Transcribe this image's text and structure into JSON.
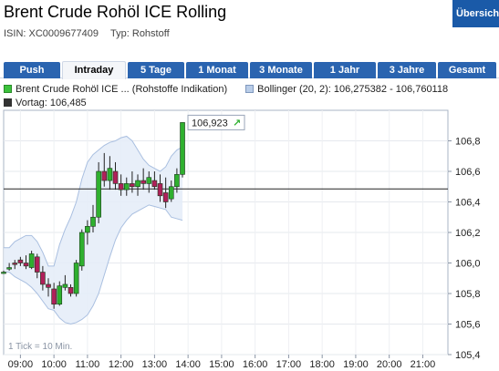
{
  "page": {
    "title": "Brent Crude Rohöl ICE Rolling",
    "overview_button": "Übersicht",
    "isin": "ISIN: XC0009677409",
    "type": "Typ: Rohstoff"
  },
  "tabs": [
    {
      "label": "Push"
    },
    {
      "label": "Intraday",
      "active": true
    },
    {
      "label": "5 Tage"
    },
    {
      "label": "1 Monat"
    },
    {
      "label": "3 Monate"
    },
    {
      "label": "1 Jahr"
    },
    {
      "label": "3 Jahre"
    },
    {
      "label": "Gesamt"
    }
  ],
  "legend": {
    "series": "Brent Crude Rohöl ICE ... (Rohstoffe Indikation)",
    "bollinger": "Bollinger (20, 2): 106,275382 - 106,760118",
    "prev_close": "Vortag: 106,485"
  },
  "colors": {
    "up": "#2fb02f",
    "down": "#b0205a",
    "band_fill": "#e4ecf8",
    "band_line": "#a9bfe0",
    "prev_line": "#222222",
    "tab_active_bg": "#f4f6f9",
    "tab_bg": "#2a64b0",
    "button_bg": "#1a5aa8"
  },
  "chart_data": {
    "type": "candlestick",
    "ylim": [
      105.4,
      107.0
    ],
    "y_ticks": [
      "106,8",
      "106,6",
      "106,4",
      "106,2",
      "106,0",
      "105,8",
      "105,6",
      "105,4"
    ],
    "x_ticks": [
      "09:00",
      "10:00",
      "11:00",
      "12:00",
      "13:00",
      "14:00",
      "15:00",
      "16:00",
      "17:00",
      "18:00",
      "19:00",
      "20:00",
      "21:00"
    ],
    "interval_note": "1 Tick = 10 Min.",
    "prev_close": 106.485,
    "last_value_label": "106,923",
    "last_value_arrow": "↗",
    "candles": [
      {
        "t": "08:30",
        "o": 105.94,
        "h": 105.95,
        "l": 105.93,
        "c": 105.94
      },
      {
        "t": "08:40",
        "o": 105.96,
        "h": 106.0,
        "l": 105.95,
        "c": 105.97
      },
      {
        "t": "08:50",
        "o": 106.0,
        "h": 106.02,
        "l": 105.96,
        "c": 105.99
      },
      {
        "t": "09:00",
        "o": 106.02,
        "h": 106.04,
        "l": 105.98,
        "c": 106.0
      },
      {
        "t": "09:10",
        "o": 106.0,
        "h": 106.05,
        "l": 105.96,
        "c": 105.98
      },
      {
        "t": "09:20",
        "o": 105.97,
        "h": 106.08,
        "l": 105.96,
        "c": 106.06
      },
      {
        "t": "09:30",
        "o": 106.04,
        "h": 106.06,
        "l": 105.9,
        "c": 105.94
      },
      {
        "t": "09:40",
        "o": 105.94,
        "h": 105.98,
        "l": 105.82,
        "c": 105.86
      },
      {
        "t": "09:50",
        "o": 105.86,
        "h": 105.9,
        "l": 105.78,
        "c": 105.84
      },
      {
        "t": "10:00",
        "o": 105.83,
        "h": 105.87,
        "l": 105.7,
        "c": 105.73
      },
      {
        "t": "10:10",
        "o": 105.73,
        "h": 105.88,
        "l": 105.72,
        "c": 105.85
      },
      {
        "t": "10:20",
        "o": 105.84,
        "h": 105.92,
        "l": 105.82,
        "c": 105.86
      },
      {
        "t": "10:30",
        "o": 105.84,
        "h": 105.86,
        "l": 105.78,
        "c": 105.8
      },
      {
        "t": "10:40",
        "o": 105.8,
        "h": 106.02,
        "l": 105.78,
        "c": 106.0
      },
      {
        "t": "10:50",
        "o": 105.98,
        "h": 106.22,
        "l": 105.95,
        "c": 106.2
      },
      {
        "t": "11:00",
        "o": 106.2,
        "h": 106.28,
        "l": 106.12,
        "c": 106.24
      },
      {
        "t": "11:10",
        "o": 106.24,
        "h": 106.38,
        "l": 106.2,
        "c": 106.3
      },
      {
        "t": "11:20",
        "o": 106.3,
        "h": 106.66,
        "l": 106.26,
        "c": 106.6
      },
      {
        "t": "11:30",
        "o": 106.6,
        "h": 106.72,
        "l": 106.5,
        "c": 106.54
      },
      {
        "t": "11:40",
        "o": 106.54,
        "h": 106.7,
        "l": 106.48,
        "c": 106.62
      },
      {
        "t": "11:50",
        "o": 106.6,
        "h": 106.66,
        "l": 106.48,
        "c": 106.52
      },
      {
        "t": "12:00",
        "o": 106.52,
        "h": 106.58,
        "l": 106.44,
        "c": 106.48
      },
      {
        "t": "12:10",
        "o": 106.48,
        "h": 106.56,
        "l": 106.44,
        "c": 106.52
      },
      {
        "t": "12:20",
        "o": 106.52,
        "h": 106.6,
        "l": 106.46,
        "c": 106.5
      },
      {
        "t": "12:30",
        "o": 106.5,
        "h": 106.58,
        "l": 106.44,
        "c": 106.54
      },
      {
        "t": "12:40",
        "o": 106.54,
        "h": 106.62,
        "l": 106.48,
        "c": 106.52
      },
      {
        "t": "12:50",
        "o": 106.52,
        "h": 106.6,
        "l": 106.46,
        "c": 106.56
      },
      {
        "t": "13:00",
        "o": 106.54,
        "h": 106.6,
        "l": 106.48,
        "c": 106.5
      },
      {
        "t": "13:10",
        "o": 106.52,
        "h": 106.58,
        "l": 106.4,
        "c": 106.44
      },
      {
        "t": "13:20",
        "o": 106.46,
        "h": 106.56,
        "l": 106.36,
        "c": 106.4
      },
      {
        "t": "13:30",
        "o": 106.42,
        "h": 106.54,
        "l": 106.4,
        "c": 106.5
      },
      {
        "t": "13:40",
        "o": 106.5,
        "h": 106.62,
        "l": 106.46,
        "c": 106.58
      },
      {
        "t": "13:50",
        "o": 106.58,
        "h": 106.92,
        "l": 106.56,
        "c": 106.92
      }
    ],
    "bollinger_upper": [
      106.1,
      106.1,
      106.14,
      106.16,
      106.18,
      106.18,
      106.14,
      106.07,
      105.98,
      105.98,
      106.12,
      106.22,
      106.3,
      106.4,
      106.55,
      106.66,
      106.71,
      106.74,
      106.77,
      106.79,
      106.8,
      106.82,
      106.83,
      106.8,
      106.74,
      106.68,
      106.64,
      106.62,
      106.6,
      106.63,
      106.7,
      106.74,
      106.76
    ],
    "bollinger_lower": [
      105.94,
      105.94,
      105.91,
      105.89,
      105.87,
      105.84,
      105.8,
      105.75,
      105.7,
      105.69,
      105.64,
      105.61,
      105.6,
      105.61,
      105.63,
      105.66,
      105.72,
      105.8,
      105.92,
      106.04,
      106.15,
      106.23,
      106.28,
      106.32,
      106.34,
      106.36,
      106.38,
      106.37,
      106.36,
      106.35,
      106.3,
      106.29,
      106.28
    ]
  }
}
